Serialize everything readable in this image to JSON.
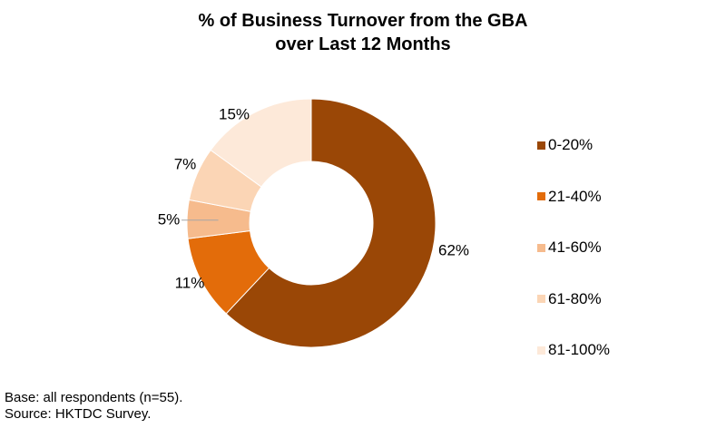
{
  "chart_data": {
    "type": "pie",
    "variant": "donut",
    "title": "% of Business Turnover from the GBA over Last 12 Months",
    "title_lines": [
      "% of Business Turnover from the GBA",
      "over Last 12 Months"
    ],
    "categories": [
      "0-20%",
      "21-40%",
      "41-60%",
      "61-80%",
      "81-100%"
    ],
    "values": [
      62,
      11,
      5,
      7,
      15
    ],
    "data_labels": [
      "62%",
      "11%",
      "5%",
      "7%",
      "15%"
    ],
    "colors": [
      "#9a4706",
      "#e36c0a",
      "#f6bb8d",
      "#fbd5b5",
      "#fde9d9"
    ],
    "legend_position": "right"
  },
  "footnotes": {
    "base": "Base: all respondents (n=55).",
    "source": "Source: HKTDC Survey."
  }
}
